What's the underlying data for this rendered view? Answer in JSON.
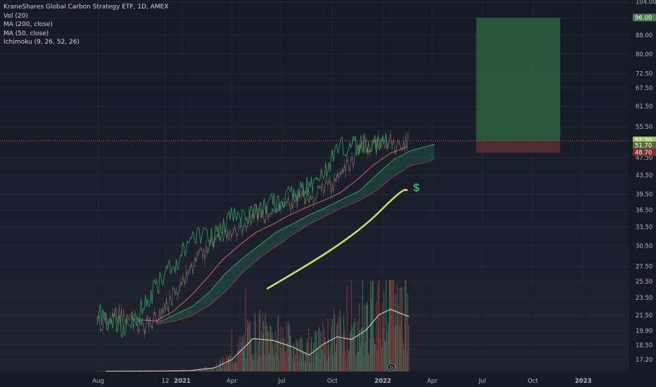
{
  "header": {
    "symbol": "KraneShares Global Carbon Strategy ETF, 1D, AMEX"
  },
  "indicators": [
    "Vol (20)",
    "MA (200, close)",
    "MA (50, close)",
    "Ichimoku (9, 26, 52, 26)"
  ],
  "chart_data": {
    "type": "line",
    "title": "KraneShares Global Carbon Strategy ETF, 1D, AMEX",
    "y_scale": "log",
    "ylim": [
      16.2,
      105.0
    ],
    "y_ticks": [
      {
        "v": 17.2,
        "label": "17.20"
      },
      {
        "v": 18.5,
        "label": "18.50"
      },
      {
        "v": 19.9,
        "label": "19.90"
      },
      {
        "v": 21.5,
        "label": "21.50"
      },
      {
        "v": 23.5,
        "label": "23.50"
      },
      {
        "v": 25.5,
        "label": "25.50"
      },
      {
        "v": 27.5,
        "label": "27.50"
      },
      {
        "v": 30.5,
        "label": "30.50"
      },
      {
        "v": 33.5,
        "label": "33.50"
      },
      {
        "v": 36.5,
        "label": "36.50"
      },
      {
        "v": 39.5,
        "label": "39.50"
      },
      {
        "v": 43.5,
        "label": "43.50"
      },
      {
        "v": 47.5,
        "label": "47.50"
      },
      {
        "v": 55.5,
        "label": "55.50"
      },
      {
        "v": 61.5,
        "label": "61.50"
      },
      {
        "v": 67.5,
        "label": "67.50"
      },
      {
        "v": 72.5,
        "label": "72.50"
      },
      {
        "v": 80.0,
        "label": "80.00"
      },
      {
        "v": 88.0,
        "label": "88.00"
      },
      {
        "v": 96.0,
        "label": "96.00"
      },
      {
        "v": 104.0,
        "label": "104.00"
      }
    ],
    "x_ticks": [
      {
        "date": "2020-08-01",
        "label": "Aug"
      },
      {
        "date": "2020-12-01",
        "label": "12"
      },
      {
        "date": "2021-01-01",
        "label": "2021"
      },
      {
        "date": "2021-04-01",
        "label": "Apr"
      },
      {
        "date": "2021-07-01",
        "label": "Jul"
      },
      {
        "date": "2021-10-01",
        "label": "Oct"
      },
      {
        "date": "2022-01-01",
        "label": "2022"
      },
      {
        "date": "2022-04-01",
        "label": "Apr"
      },
      {
        "date": "2022-07-01",
        "label": "Jul"
      },
      {
        "date": "2022-10-01",
        "label": "Oct"
      },
      {
        "date": "2023-01-01",
        "label": "2023"
      }
    ],
    "price_series": [
      {
        "date": "2020-07-30",
        "value": 20.6
      },
      {
        "date": "2020-08-20",
        "value": 21.0
      },
      {
        "date": "2020-09-10",
        "value": 21.6
      },
      {
        "date": "2020-10-01",
        "value": 21.0
      },
      {
        "date": "2020-10-22",
        "value": 20.3
      },
      {
        "date": "2020-11-12",
        "value": 21.2
      },
      {
        "date": "2020-12-03",
        "value": 22.6
      },
      {
        "date": "2020-12-24",
        "value": 24.8
      },
      {
        "date": "2021-01-14",
        "value": 26.6
      },
      {
        "date": "2021-02-04",
        "value": 28.8
      },
      {
        "date": "2021-02-25",
        "value": 31.0
      },
      {
        "date": "2021-03-18",
        "value": 32.2
      },
      {
        "date": "2021-04-08",
        "value": 32.0
      },
      {
        "date": "2021-04-29",
        "value": 34.5
      },
      {
        "date": "2021-05-20",
        "value": 36.2
      },
      {
        "date": "2021-06-10",
        "value": 35.3
      },
      {
        "date": "2021-07-01",
        "value": 36.8
      },
      {
        "date": "2021-07-22",
        "value": 38.0
      },
      {
        "date": "2021-08-12",
        "value": 38.8
      },
      {
        "date": "2021-09-02",
        "value": 39.6
      },
      {
        "date": "2021-09-23",
        "value": 40.8
      },
      {
        "date": "2021-10-14",
        "value": 42.6
      },
      {
        "date": "2021-11-04",
        "value": 46.5
      },
      {
        "date": "2021-11-25",
        "value": 50.5
      },
      {
        "date": "2021-12-16",
        "value": 50.2
      },
      {
        "date": "2022-01-06",
        "value": 51.8
      },
      {
        "date": "2022-01-27",
        "value": 50.6
      },
      {
        "date": "2022-02-17",
        "value": 51.7
      }
    ],
    "ma50_series": [
      {
        "date": "2020-10-15",
        "value": 21.0
      },
      {
        "date": "2020-11-15",
        "value": 20.9
      },
      {
        "date": "2020-12-15",
        "value": 21.9
      },
      {
        "date": "2021-01-15",
        "value": 23.6
      },
      {
        "date": "2021-02-15",
        "value": 25.9
      },
      {
        "date": "2021-03-15",
        "value": 28.4
      },
      {
        "date": "2021-04-15",
        "value": 30.6
      },
      {
        "date": "2021-05-15",
        "value": 32.6
      },
      {
        "date": "2021-06-15",
        "value": 34.0
      },
      {
        "date": "2021-07-15",
        "value": 35.6
      },
      {
        "date": "2021-08-15",
        "value": 37.0
      },
      {
        "date": "2021-09-15",
        "value": 38.3
      },
      {
        "date": "2021-10-15",
        "value": 39.8
      },
      {
        "date": "2021-11-15",
        "value": 42.5
      },
      {
        "date": "2021-12-15",
        "value": 45.8
      },
      {
        "date": "2022-01-15",
        "value": 48.6
      },
      {
        "date": "2022-02-15",
        "value": 50.2
      }
    ],
    "ichimoku_cloud": [
      {
        "date": "2020-11-20",
        "a": 20.8,
        "b": 20.6
      },
      {
        "date": "2020-12-20",
        "a": 21.6,
        "b": 20.9
      },
      {
        "date": "2021-01-20",
        "a": 22.5,
        "b": 21.5
      },
      {
        "date": "2021-02-20",
        "a": 24.2,
        "b": 22.6
      },
      {
        "date": "2021-03-20",
        "a": 26.5,
        "b": 24.2
      },
      {
        "date": "2021-04-20",
        "a": 28.6,
        "b": 26.6
      },
      {
        "date": "2021-05-20",
        "a": 30.5,
        "b": 28.6
      },
      {
        "date": "2021-06-20",
        "a": 32.6,
        "b": 30.4
      },
      {
        "date": "2021-07-20",
        "a": 34.0,
        "b": 32.2
      },
      {
        "date": "2021-08-20",
        "a": 35.6,
        "b": 34.0
      },
      {
        "date": "2021-09-20",
        "a": 37.0,
        "b": 35.5
      },
      {
        "date": "2021-10-20",
        "a": 38.6,
        "b": 37.0
      },
      {
        "date": "2021-11-20",
        "a": 40.2,
        "b": 38.3
      },
      {
        "date": "2021-12-20",
        "a": 43.5,
        "b": 40.2
      },
      {
        "date": "2022-01-20",
        "a": 47.0,
        "b": 43.2
      },
      {
        "date": "2022-02-20",
        "a": 49.2,
        "b": 45.6
      },
      {
        "date": "2022-03-20",
        "a": 50.2,
        "b": 46.4
      },
      {
        "date": "2022-04-05",
        "a": 50.8,
        "b": 47.2
      }
    ],
    "volume_ma_series": [
      {
        "date": "2020-08-15",
        "value": 0.003
      },
      {
        "date": "2020-12-01",
        "value": 0.006
      },
      {
        "date": "2021-01-15",
        "value": 0.01
      },
      {
        "date": "2021-03-01",
        "value": 0.04
      },
      {
        "date": "2021-04-01",
        "value": 0.13
      },
      {
        "date": "2021-05-10",
        "value": 0.36
      },
      {
        "date": "2021-06-15",
        "value": 0.34
      },
      {
        "date": "2021-07-20",
        "value": 0.27
      },
      {
        "date": "2021-08-20",
        "value": 0.18
      },
      {
        "date": "2021-09-15",
        "value": 0.3
      },
      {
        "date": "2021-10-10",
        "value": 0.38
      },
      {
        "date": "2021-11-05",
        "value": 0.35
      },
      {
        "date": "2021-12-01",
        "value": 0.45
      },
      {
        "date": "2021-12-25",
        "value": 0.62
      },
      {
        "date": "2022-01-15",
        "value": 0.68
      },
      {
        "date": "2022-02-05",
        "value": 0.63
      },
      {
        "date": "2022-02-18",
        "value": 0.6
      }
    ],
    "annotations": {
      "dollar_sign": "$",
      "dividend_marker": "D",
      "horizontal_line_value": 51.7
    },
    "price_labels": [
      {
        "value": 51.7,
        "label": "51.70",
        "color": "#a5c96a"
      },
      {
        "value": 51.7,
        "label": "51.70",
        "color": "#5b6c3a"
      },
      {
        "value": 48.7,
        "label": "48.70",
        "color": "#7a2e2e"
      },
      {
        "value": 96.0,
        "label": "96.00",
        "color": "#4f7a4f"
      }
    ],
    "trade_zone": {
      "entry": 51.7,
      "target": 96.0,
      "stop": 48.7,
      "start_date": "2022-06-20",
      "end_date": "2022-11-20",
      "profit_color": "#2e6b43",
      "loss_color": "#5a2f33"
    },
    "colors": {
      "price_line": "#3fa564",
      "ma50": "#c2605a",
      "trend_line": "#c3e06a",
      "cloud_up": "#2a7a57",
      "cloud_down": "#8b3a3a",
      "volume_up": "#3e7b61",
      "volume_down": "#8a3b3b",
      "volume_ma": "#e8dcc0",
      "horizontal_line": "#cf6a4a"
    }
  }
}
